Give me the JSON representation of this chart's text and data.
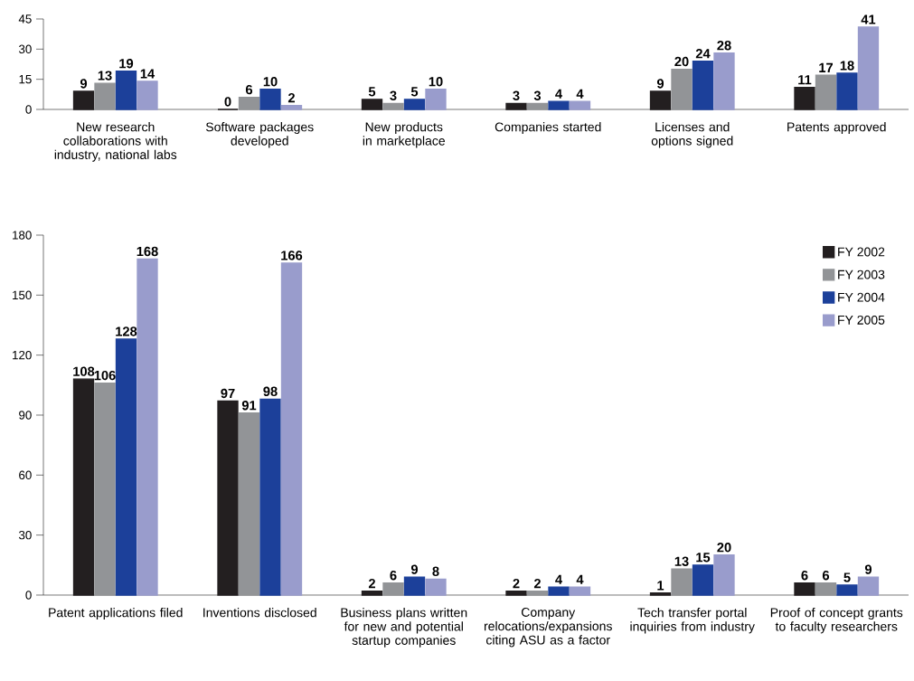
{
  "chart_data": [
    {
      "type": "bar",
      "categories": [
        "New research collaborations with industry, national labs",
        "Software packages developed",
        "New products in marketplace",
        "Companies started",
        "Licenses and options signed",
        "Patents approved"
      ],
      "series": [
        {
          "color": "#231f20",
          "values": [
            9,
            0,
            5,
            3,
            9,
            11
          ]
        },
        {
          "color": "#929497",
          "values": [
            13,
            6,
            3,
            3,
            20,
            17
          ]
        },
        {
          "color": "#1c409a",
          "values": [
            19,
            10,
            5,
            4,
            24,
            18
          ]
        },
        {
          "color": "#999ccc",
          "values": [
            14,
            2,
            10,
            4,
            28,
            41
          ]
        }
      ],
      "ylim": [
        0,
        45
      ],
      "yticks": [
        0,
        15,
        30,
        45
      ],
      "data_labels": true
    },
    {
      "type": "bar",
      "categories": [
        "Patent applications filed",
        "Inventions disclosed",
        "Business plans written for new and potential startup companies",
        "Company relocations/expansions citing ASU as a factor",
        "Tech transfer portal inquiries from industry",
        "Proof of concept grants to faculty researchers"
      ],
      "series": [
        {
          "name": "FY 2002",
          "color": "#231f20",
          "values": [
            108,
            97,
            2,
            2,
            1,
            6
          ]
        },
        {
          "name": "FY 2003",
          "color": "#929497",
          "values": [
            106,
            91,
            6,
            2,
            13,
            6
          ]
        },
        {
          "name": "FY 2004",
          "color": "#1c409a",
          "values": [
            128,
            98,
            9,
            4,
            15,
            5
          ]
        },
        {
          "name": "FY 2005",
          "color": "#999ccc",
          "values": [
            168,
            166,
            8,
            4,
            20,
            9
          ]
        }
      ],
      "ylim": [
        0,
        180
      ],
      "yticks": [
        0,
        30,
        60,
        90,
        120,
        150,
        180
      ],
      "data_labels": true,
      "legend": "top right"
    }
  ]
}
